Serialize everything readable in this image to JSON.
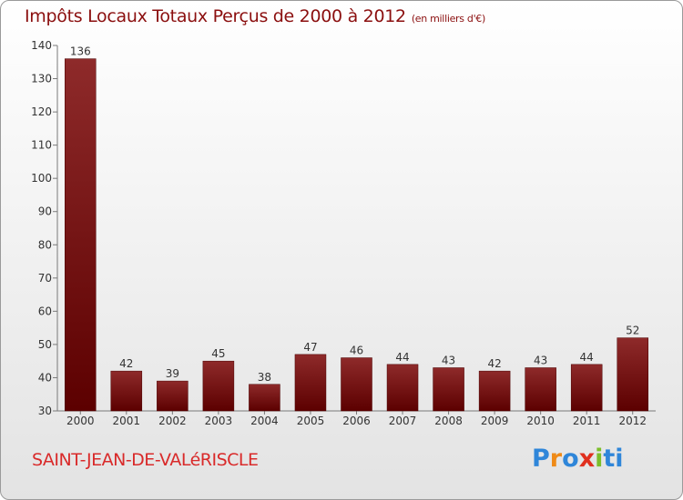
{
  "header": {
    "title": "Impôts Locaux Totaux Perçus de 2000 à 2012",
    "unit": "(en milliers d'€)"
  },
  "footer": {
    "commune": "SAINT-JEAN-DE-VALéRISCLE",
    "brand": "Proxiti"
  },
  "colors": {
    "bar_top": "#8e2a2a",
    "bar_bottom": "#5c0000",
    "title": "#8b0f0f",
    "commune": "#d92a2a"
  },
  "chart_data": {
    "type": "bar",
    "title": "Impôts Locaux Totaux Perçus de 2000 à 2012",
    "xlabel": "",
    "ylabel": "",
    "categories": [
      "2000",
      "2001",
      "2002",
      "2003",
      "2004",
      "2005",
      "2006",
      "2007",
      "2008",
      "2009",
      "2010",
      "2011",
      "2012"
    ],
    "values": [
      136,
      42,
      39,
      45,
      38,
      47,
      46,
      44,
      43,
      42,
      43,
      44,
      52
    ],
    "ylim": [
      30,
      140
    ],
    "yticks": [
      30,
      40,
      50,
      60,
      70,
      80,
      90,
      100,
      110,
      120,
      130,
      140
    ],
    "grid": false,
    "data_labels": true
  }
}
